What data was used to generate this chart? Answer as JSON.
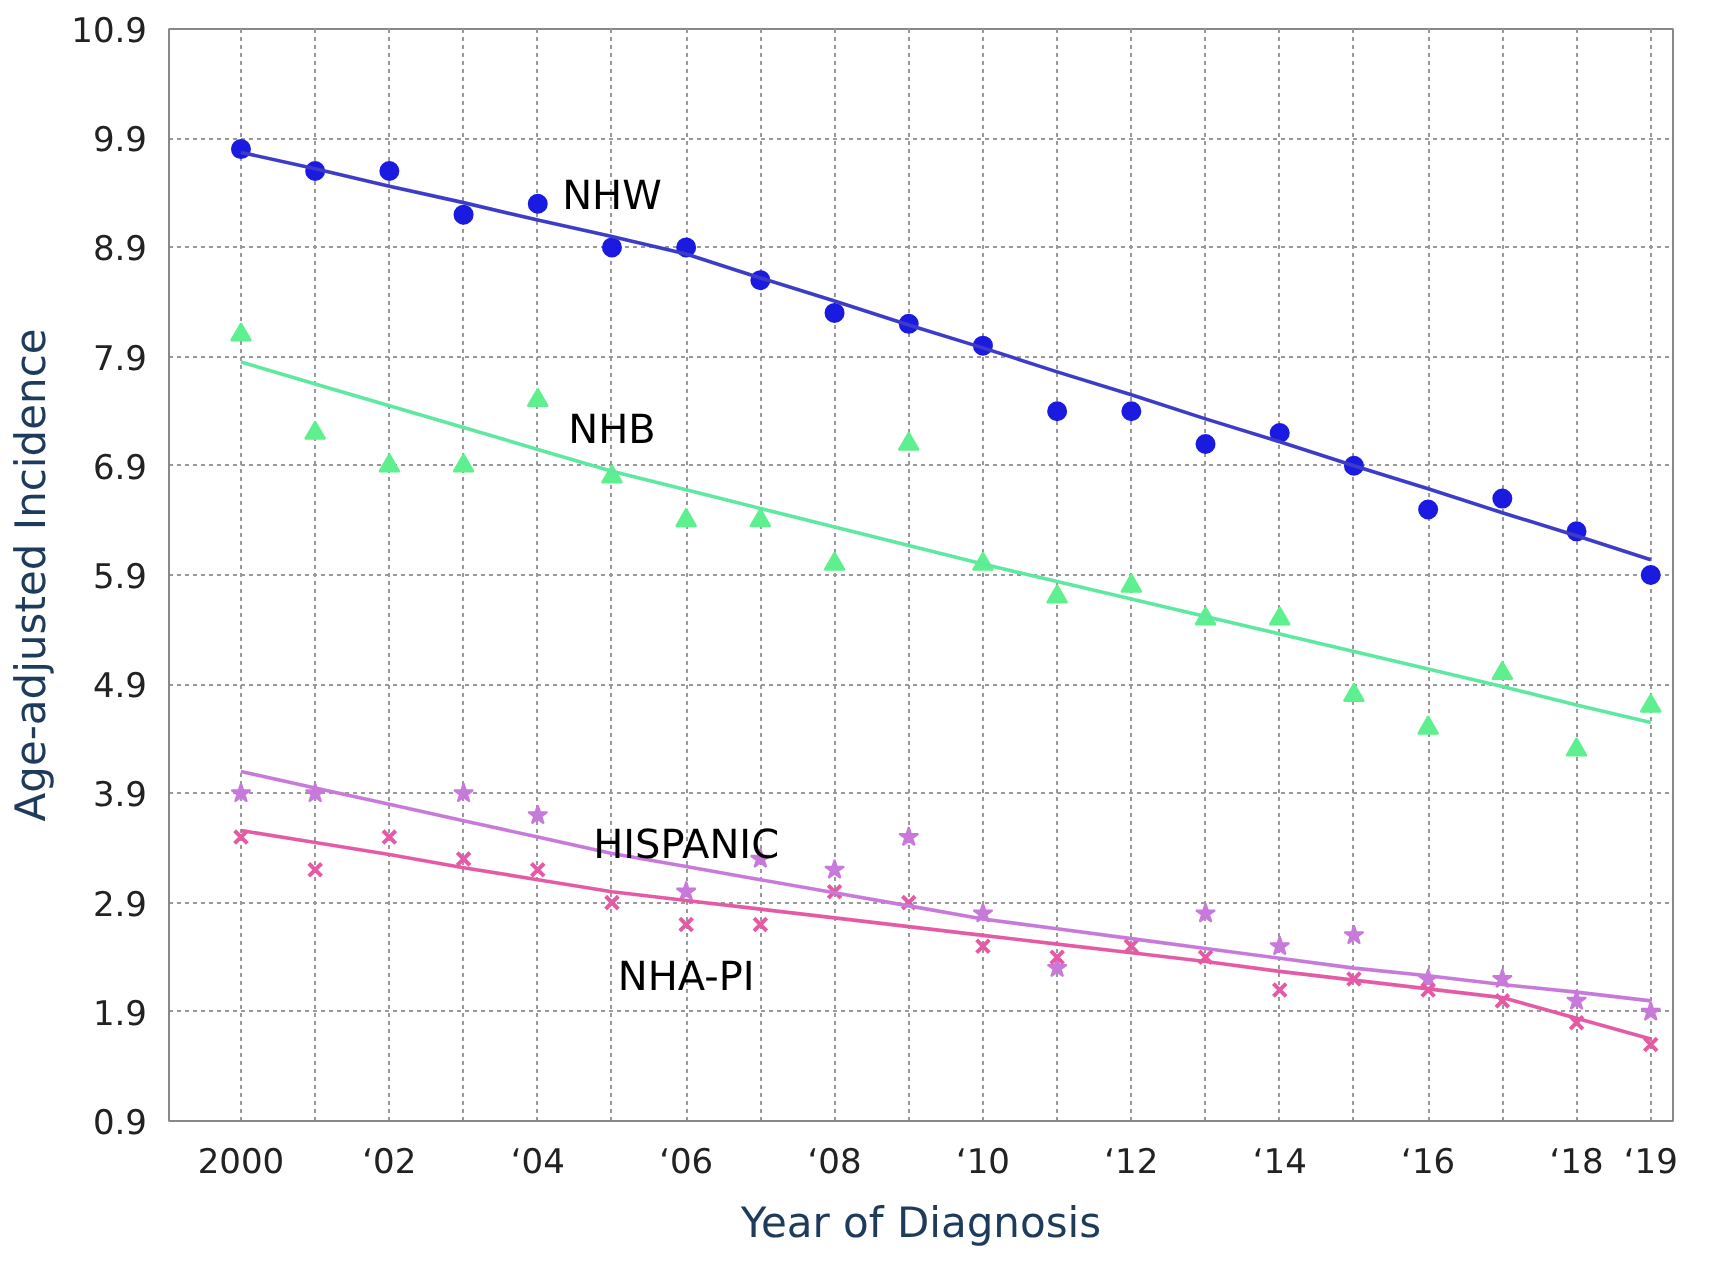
{
  "chart_data": {
    "type": "scatter",
    "xlabel": "Year of Diagnosis",
    "ylabel": "Age-adjusted Incidence",
    "ylim": [
      0.9,
      10.9
    ],
    "yticks": [
      0.9,
      1.9,
      2.9,
      3.9,
      4.9,
      5.9,
      6.9,
      7.9,
      8.9,
      9.9,
      10.9
    ],
    "grid": true,
    "legend": false,
    "categories": [
      "2000",
      null,
      "‘02",
      null,
      "‘04",
      null,
      "‘06",
      null,
      "‘08",
      null,
      "‘10",
      null,
      "‘12",
      null,
      "‘14",
      null,
      "‘16",
      null,
      "‘18",
      "‘19"
    ],
    "series": [
      {
        "name": "NHW",
        "color": "#1a1ae0",
        "marker": "circle",
        "values": [
          9.8,
          9.6,
          9.6,
          9.2,
          9.3,
          8.9,
          8.9,
          8.6,
          8.3,
          8.2,
          8.0,
          7.4,
          7.4,
          7.1,
          7.2,
          6.9,
          6.5,
          6.6,
          6.3,
          5.9
        ]
      },
      {
        "name": "NHB",
        "color": "#5ef08e",
        "marker": "triangle",
        "values": [
          8.1,
          7.2,
          6.9,
          6.9,
          7.5,
          6.8,
          6.4,
          6.4,
          6.0,
          7.1,
          6.0,
          5.7,
          5.8,
          5.5,
          5.5,
          4.8,
          4.5,
          5.0,
          4.3,
          4.7
        ]
      },
      {
        "name": "HISPANIC",
        "color": "#c77ad9",
        "marker": "star",
        "values": [
          3.9,
          3.9,
          null,
          3.9,
          3.7,
          null,
          3.0,
          3.3,
          3.2,
          3.5,
          2.8,
          2.3,
          null,
          2.8,
          2.5,
          2.6,
          2.2,
          2.2,
          2.0,
          1.9
        ]
      },
      {
        "name": "NHA-PI",
        "color": "#e55aa5",
        "marker": "cross",
        "values": [
          3.5,
          3.2,
          3.5,
          3.3,
          3.2,
          2.9,
          2.7,
          2.7,
          3.0,
          2.9,
          2.5,
          2.4,
          2.5,
          2.4,
          2.1,
          2.2,
          2.1,
          2.0,
          1.8,
          1.6
        ]
      },
      {
        "type": "line",
        "color": "#3c3cc8",
        "values": [
          9.77,
          9.62,
          9.46,
          9.31,
          9.15,
          9.0,
          8.84,
          8.62,
          8.41,
          8.19,
          7.98,
          7.76,
          7.55,
          7.33,
          7.12,
          6.9,
          6.69,
          6.47,
          6.26,
          6.04
        ]
      },
      {
        "type": "line",
        "color": "#5ee8a0",
        "values": [
          7.85,
          7.65,
          7.45,
          7.25,
          7.05,
          6.85,
          6.68,
          6.51,
          6.34,
          6.17,
          6.0,
          5.84,
          5.68,
          5.52,
          5.36,
          5.2,
          5.04,
          4.88,
          4.71,
          4.55
        ]
      },
      {
        "type": "line",
        "color": "#c77ad9",
        "values": [
          4.1,
          3.95,
          3.8,
          3.65,
          3.5,
          3.35,
          3.23,
          3.11,
          2.99,
          2.87,
          2.75,
          2.66,
          2.57,
          2.48,
          2.39,
          2.3,
          2.23,
          2.15,
          2.08,
          2.0
        ]
      },
      {
        "type": "line",
        "color": "#e55aa5",
        "values": [
          3.56,
          3.45,
          3.34,
          3.22,
          3.11,
          3.0,
          2.92,
          2.84,
          2.76,
          2.68,
          2.6,
          2.52,
          2.44,
          2.36,
          2.27,
          2.19,
          2.11,
          2.03,
          1.84,
          1.65
        ]
      }
    ]
  }
}
